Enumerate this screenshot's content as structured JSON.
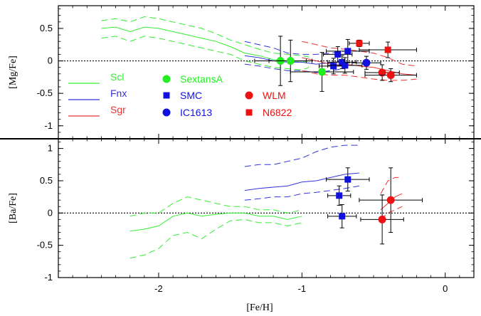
{
  "chart_data": {
    "type": "line",
    "xlabel": "[Fe/H]",
    "xlim": [
      -2.7,
      0.2
    ],
    "x_ticks": [
      -2,
      -1,
      0
    ],
    "x_tick_labels": [
      "-2",
      "-1",
      "0"
    ],
    "colors": {
      "Scl": "#33ee33",
      "Fnx": "#3333dd",
      "Sgr": "#ee3333",
      "SextansA": "#22ee22",
      "SMC": "#1111dd",
      "IC1613": "#1111dd",
      "WLM": "#ee1111",
      "N6822": "#ee1111"
    },
    "legend": {
      "lines": [
        {
          "name": "Scl",
          "color": "#33ee33"
        },
        {
          "name": "Fnx",
          "color": "#3333dd"
        },
        {
          "name": "Sgr",
          "color": "#ee3333"
        }
      ],
      "points": [
        {
          "name": "SextansA",
          "marker": "circle",
          "color": "#22ee22"
        },
        {
          "name": "SMC",
          "marker": "square",
          "color": "#1111dd"
        },
        {
          "name": "IC1613",
          "marker": "circle",
          "color": "#1111dd"
        },
        {
          "name": "WLM",
          "marker": "circle",
          "color": "#ee1111"
        },
        {
          "name": "N6822",
          "marker": "square",
          "color": "#ee1111"
        }
      ]
    },
    "panels": [
      {
        "ylabel": "[Mg/Fe]",
        "ylim": [
          -1.2,
          0.85
        ],
        "y_ticks": [
          0.5,
          0,
          -0.5,
          -1
        ],
        "y_tick_labels": [
          "0.5",
          "0",
          "-0.5",
          "-1"
        ],
        "reference_line": 0,
        "bands": [
          {
            "name": "Scl",
            "color": "#33ee33",
            "x": [
              -2.4,
              -2.3,
              -2.2,
              -2.1,
              -2.0,
              -1.9,
              -1.8,
              -1.7,
              -1.6,
              -1.5,
              -1.4,
              -1.3,
              -1.2,
              -1.1,
              -1.0,
              -0.95
            ],
            "mean": [
              0.5,
              0.52,
              0.45,
              0.52,
              0.5,
              0.45,
              0.4,
              0.35,
              0.3,
              0.22,
              0.12,
              0.08,
              0.02,
              0.0,
              -0.02,
              0.0
            ],
            "upper": [
              0.62,
              0.65,
              0.6,
              0.68,
              0.65,
              0.6,
              0.55,
              0.5,
              0.42,
              0.32,
              0.25,
              0.18,
              0.12,
              0.1,
              0.08,
              0.06
            ],
            "lower": [
              0.35,
              0.38,
              0.3,
              0.38,
              0.35,
              0.3,
              0.25,
              0.2,
              0.15,
              0.1,
              0.0,
              -0.05,
              -0.1,
              -0.12,
              -0.14,
              -0.1
            ]
          },
          {
            "name": "Fnx",
            "color": "#3333dd",
            "x": [
              -1.4,
              -1.3,
              -1.2,
              -1.1,
              -1.0,
              -0.9,
              -0.8,
              -0.7
            ],
            "mean": [
              0.08,
              0.05,
              0.0,
              -0.02,
              -0.02,
              -0.05,
              -0.03,
              0.0
            ],
            "upper": [
              0.3,
              0.25,
              0.2,
              0.12,
              0.1,
              0.1,
              0.12,
              0.15
            ],
            "lower": [
              -0.05,
              -0.08,
              -0.12,
              -0.15,
              -0.15,
              -0.18,
              -0.15,
              -0.12
            ]
          },
          {
            "name": "Sgr",
            "color": "#ee3333",
            "x": [
              -1.0,
              -0.9,
              -0.8,
              -0.7,
              -0.6,
              -0.5,
              -0.4,
              -0.3,
              -0.2
            ],
            "mean": [
              0.05,
              0.0,
              -0.05,
              -0.05,
              -0.08,
              -0.1,
              -0.15,
              -0.2,
              -0.22
            ],
            "upper": [
              0.3,
              0.25,
              0.2,
              0.18,
              0.15,
              0.12,
              0.05,
              -0.05,
              -0.08
            ],
            "lower": [
              -0.15,
              -0.2,
              -0.22,
              -0.22,
              -0.25,
              -0.28,
              -0.3,
              -0.3,
              -0.28
            ]
          }
        ],
        "points": [
          {
            "name": "SextansA",
            "marker": "circle",
            "color": "#22ee22",
            "x": -1.15,
            "y": 0.0,
            "xerr": 0.18,
            "yerr": 0.38
          },
          {
            "name": "SextansA",
            "marker": "circle",
            "color": "#22ee22",
            "x": -1.08,
            "y": 0.0,
            "xerr": 0.15,
            "yerr": 0.32
          },
          {
            "name": "SextansA",
            "marker": "circle",
            "color": "#22ee22",
            "x": -0.86,
            "y": -0.17,
            "xerr": 0.22,
            "yerr": 0.3
          },
          {
            "name": "SMC",
            "marker": "square",
            "color": "#1111dd",
            "x": -0.78,
            "y": -0.08,
            "xerr": 0.1,
            "yerr": 0.12
          },
          {
            "name": "SMC",
            "marker": "square",
            "color": "#1111dd",
            "x": -0.75,
            "y": 0.1,
            "xerr": 0.1,
            "yerr": 0.12
          },
          {
            "name": "SMC",
            "marker": "square",
            "color": "#1111dd",
            "x": -0.72,
            "y": -0.02,
            "xerr": 0.1,
            "yerr": 0.1
          },
          {
            "name": "SMC",
            "marker": "square",
            "color": "#1111dd",
            "x": -0.7,
            "y": -0.07,
            "xerr": 0.12,
            "yerr": 0.12
          },
          {
            "name": "SMC",
            "marker": "square",
            "color": "#1111dd",
            "x": -0.68,
            "y": 0.15,
            "xerr": 0.15,
            "yerr": 0.18
          },
          {
            "name": "IC1613",
            "marker": "circle",
            "color": "#1111dd",
            "x": -0.55,
            "y": -0.03,
            "xerr": 0.1,
            "yerr": 0.1
          },
          {
            "name": "N6822",
            "marker": "square",
            "color": "#ee1111",
            "x": -0.6,
            "y": 0.27,
            "xerr": 0.07,
            "yerr": 0.05
          },
          {
            "name": "N6822",
            "marker": "square",
            "color": "#ee1111",
            "x": -0.4,
            "y": 0.17,
            "xerr": 0.2,
            "yerr": 0.12
          },
          {
            "name": "WLM",
            "marker": "circle",
            "color": "#ee1111",
            "x": -0.44,
            "y": -0.18,
            "xerr": 0.12,
            "yerr": 0.12
          },
          {
            "name": "WLM",
            "marker": "circle",
            "color": "#ee1111",
            "x": -0.38,
            "y": -0.22,
            "xerr": 0.18,
            "yerr": 0.1
          }
        ]
      },
      {
        "ylabel": "[Ba/Fe]",
        "ylim": [
          -1.0,
          1.15
        ],
        "y_ticks": [
          1,
          0.5,
          0,
          -0.5,
          -1
        ],
        "y_tick_labels": [
          "1",
          "0.5",
          "0",
          "-0.5",
          "-1"
        ],
        "reference_line": 0,
        "bands": [
          {
            "name": "Scl",
            "color": "#33ee33",
            "x": [
              -2.2,
              -2.1,
              -2.0,
              -1.9,
              -1.8,
              -1.7,
              -1.6,
              -1.5,
              -1.4,
              -1.3,
              -1.2,
              -1.1,
              -1.0
            ],
            "mean": [
              -0.28,
              -0.25,
              -0.2,
              -0.05,
              0.0,
              -0.05,
              -0.02,
              0.0,
              0.0,
              -0.05,
              -0.05,
              -0.1,
              -0.05
            ],
            "upper": [
              -0.05,
              0.0,
              0.0,
              0.15,
              0.25,
              0.2,
              0.15,
              0.1,
              0.1,
              0.05,
              0.05,
              0.0,
              0.05
            ],
            "lower": [
              -0.7,
              -0.65,
              -0.55,
              -0.35,
              -0.3,
              -0.4,
              -0.25,
              -0.12,
              -0.1,
              -0.15,
              -0.15,
              -0.2,
              -0.15
            ]
          },
          {
            "name": "Fnx",
            "color": "#3333dd",
            "x": [
              -1.4,
              -1.3,
              -1.2,
              -1.1,
              -1.0,
              -0.9,
              -0.8,
              -0.7,
              -0.6
            ],
            "mean": [
              0.35,
              0.38,
              0.4,
              0.42,
              0.48,
              0.5,
              0.55,
              0.6,
              0.62
            ],
            "upper": [
              0.72,
              0.75,
              0.75,
              0.8,
              0.85,
              0.95,
              1.02,
              1.05,
              1.05
            ],
            "lower": [
              0.2,
              0.22,
              0.25,
              0.25,
              0.3,
              0.32,
              0.35,
              0.38,
              0.42
            ]
          },
          {
            "name": "Sgr",
            "color": "#ee3333",
            "x": [
              -0.45,
              -0.4,
              -0.35,
              -0.3
            ],
            "mean": [
              0.05,
              0.15,
              0.25,
              0.3
            ],
            "upper": [
              0.3,
              0.5,
              0.55,
              0.55
            ],
            "lower": [
              -0.1,
              0.0,
              0.05,
              0.1
            ]
          }
        ],
        "points": [
          {
            "name": "SMC",
            "marker": "square",
            "color": "#1111dd",
            "x": -0.74,
            "y": 0.27,
            "xerr": 0.08,
            "yerr": 0.15
          },
          {
            "name": "SMC",
            "marker": "square",
            "color": "#1111dd",
            "x": -0.68,
            "y": 0.52,
            "xerr": 0.15,
            "yerr": 0.18
          },
          {
            "name": "SMC",
            "marker": "square",
            "color": "#1111dd",
            "x": -0.72,
            "y": -0.05,
            "xerr": 0.1,
            "yerr": 0.18
          },
          {
            "name": "WLM",
            "marker": "circle",
            "color": "#ee1111",
            "x": -0.44,
            "y": -0.1,
            "xerr": 0.15,
            "yerr": 0.38
          },
          {
            "name": "WLM",
            "marker": "circle",
            "color": "#ee1111",
            "x": -0.38,
            "y": 0.2,
            "xerr": 0.22,
            "yerr": 0.5
          }
        ]
      }
    ]
  }
}
